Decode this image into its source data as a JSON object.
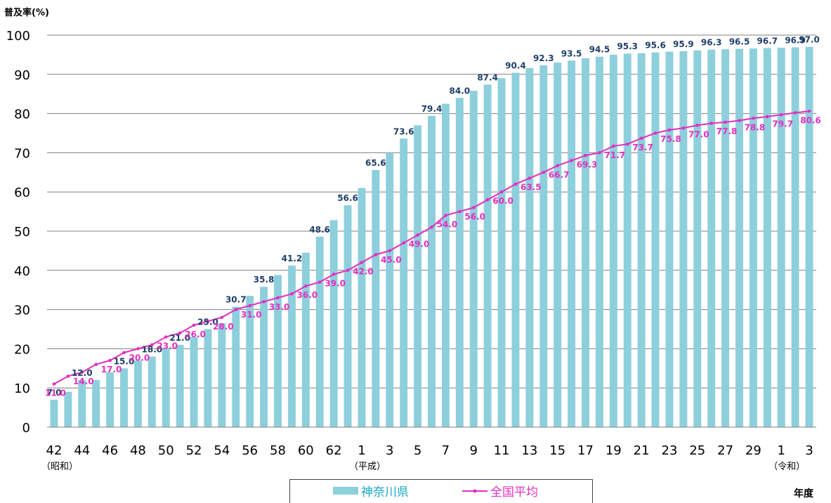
{
  "chart_data": {
    "type": "bar+line",
    "y_label": "普及率(%)",
    "x_label": "年度",
    "ylim": [
      0,
      100
    ],
    "y_ticks": [
      0,
      10,
      20,
      30,
      40,
      50,
      60,
      70,
      80,
      90,
      100
    ],
    "x_tick_labels": [
      "42",
      "44",
      "46",
      "48",
      "50",
      "52",
      "54",
      "56",
      "58",
      "60",
      "62",
      "1",
      "3",
      "5",
      "7",
      "9",
      "11",
      "13",
      "15",
      "17",
      "19",
      "21",
      "23",
      "25",
      "27",
      "29",
      "1",
      "3"
    ],
    "era_labels": [
      "（昭和）",
      "（平成）",
      "（令和）"
    ],
    "categories": [
      "S42",
      "S43",
      "S44",
      "S45",
      "S46",
      "S47",
      "S48",
      "S49",
      "S50",
      "S51",
      "S52",
      "S53",
      "S54",
      "S55",
      "S56",
      "S57",
      "S58",
      "S59",
      "S60",
      "S61",
      "S62",
      "S63",
      "H1",
      "H2",
      "H3",
      "H4",
      "H5",
      "H6",
      "H7",
      "H8",
      "H9",
      "H10",
      "H11",
      "H12",
      "H13",
      "H14",
      "H15",
      "H16",
      "H17",
      "H18",
      "H19",
      "H20",
      "H21",
      "H22",
      "H23",
      "H24",
      "H25",
      "H26",
      "H27",
      "H28",
      "H29",
      "H30",
      "R1",
      "R2",
      "R3"
    ],
    "series": [
      {
        "name": "神奈川県",
        "kind": "bar",
        "color": "#8ecfdc",
        "values": [
          7.0,
          9.0,
          12.0,
          12.0,
          14.0,
          15.0,
          17.0,
          18.0,
          20.0,
          21.0,
          23.0,
          25.0,
          26.5,
          30.7,
          33.5,
          35.8,
          38.8,
          41.2,
          44.5,
          48.6,
          52.8,
          56.6,
          61.0,
          65.6,
          70.0,
          73.6,
          77.0,
          79.4,
          82.5,
          84.0,
          85.8,
          87.4,
          89.0,
          90.4,
          91.6,
          92.3,
          93.0,
          93.5,
          94.1,
          94.5,
          95.0,
          95.3,
          95.4,
          95.6,
          95.8,
          95.9,
          96.1,
          96.3,
          96.4,
          96.5,
          96.6,
          96.7,
          96.8,
          96.9,
          97.0
        ],
        "labels": {
          "0": "7.0",
          "2": "12.0",
          "5": "15.0",
          "7": "18.0",
          "9": "21.0",
          "11": "25.0",
          "13": "30.7",
          "15": "35.8",
          "17": "41.2",
          "19": "48.6",
          "21": "56.6",
          "23": "65.6",
          "25": "73.6",
          "27": "79.4",
          "29": "84.0",
          "31": "87.4",
          "33": "90.4",
          "35": "92.3",
          "37": "93.5",
          "39": "94.5",
          "41": "95.3",
          "43": "95.6",
          "45": "95.9",
          "47": "96.3",
          "49": "96.5",
          "51": "96.7",
          "53": "96.9",
          "54": "97.0"
        }
      },
      {
        "name": "全国平均",
        "kind": "line",
        "color": "#e22fc2",
        "values": [
          11.0,
          13.0,
          14.0,
          16.0,
          17.0,
          19.0,
          20.0,
          21.0,
          23.0,
          24.0,
          26.0,
          27.0,
          28.0,
          30.0,
          31.0,
          32.0,
          33.0,
          34.0,
          36.0,
          37.0,
          39.0,
          40.0,
          42.0,
          44.0,
          45.0,
          47.0,
          49.0,
          51.0,
          54.0,
          55.0,
          56.0,
          58.0,
          60.0,
          62.0,
          63.5,
          65.0,
          66.7,
          68.0,
          69.3,
          70.0,
          71.7,
          72.2,
          73.7,
          75.0,
          75.8,
          76.3,
          77.0,
          77.5,
          77.8,
          78.2,
          78.8,
          79.2,
          79.7,
          80.2,
          80.6
        ],
        "labels": {
          "0": "11.0",
          "2": "14.0",
          "4": "17.0",
          "6": "20.0",
          "8": "23.0",
          "10": "26.0",
          "12": "28.0",
          "14": "31.0",
          "16": "33.0",
          "18": "36.0",
          "20": "39.0",
          "22": "42.0",
          "24": "45.0",
          "26": "49.0",
          "28": "54.0",
          "30": "56.0",
          "32": "60.0",
          "34": "63.5",
          "36": "66.7",
          "38": "69.3",
          "40": "71.7",
          "42": "73.7",
          "44": "75.8",
          "46": "77.0",
          "48": "77.8",
          "50": "78.8",
          "52": "79.7",
          "54": "80.6"
        }
      }
    ],
    "grid": true,
    "legend_position": "bottom-center"
  }
}
